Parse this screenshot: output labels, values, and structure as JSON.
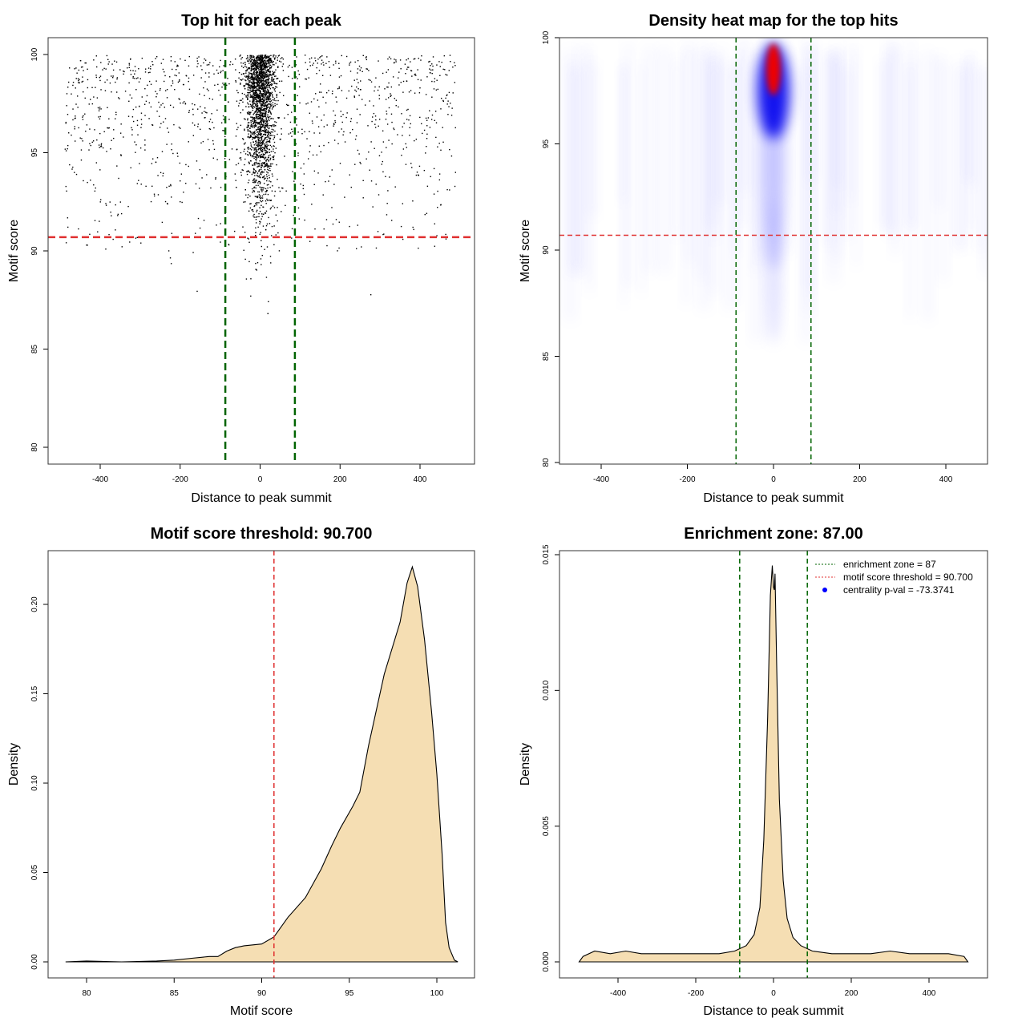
{
  "chart_data": [
    {
      "type": "scatter",
      "title": "Top hit for each peak",
      "xlabel": "Distance to peak summit",
      "ylabel": "Motif score",
      "xlim": [
        -500,
        500
      ],
      "ylim": [
        80,
        100
      ],
      "xticks": [
        -400,
        -200,
        0,
        200,
        400
      ],
      "yticks": [
        80,
        85,
        90,
        95,
        100
      ],
      "xtick_labels": [
        "-400",
        "-200",
        "0",
        "200",
        "400"
      ],
      "ytick_labels": [
        "80",
        "85",
        "90",
        "95",
        "100"
      ],
      "vlines": [
        -87,
        87
      ],
      "hline": 90.7,
      "points_summary": {
        "n_background": 1200,
        "n_central": 2200,
        "central_sd": 18,
        "score_range": [
          80,
          100
        ]
      }
    },
    {
      "type": "heatmap",
      "title": "Density heat map for the top hits",
      "xlabel": "Distance to peak summit",
      "ylabel": "Motif score",
      "xlim": [
        -500,
        500
      ],
      "ylim": [
        80,
        100
      ],
      "xticks": [
        -400,
        -200,
        0,
        200,
        400
      ],
      "yticks": [
        80,
        85,
        90,
        95,
        100
      ],
      "xtick_labels": [
        "-400",
        "-200",
        "0",
        "200",
        "400"
      ],
      "ytick_labels": [
        "80",
        "85",
        "90",
        "95",
        "100"
      ],
      "vlines": [
        -87,
        87
      ],
      "hline": 90.7,
      "peak": {
        "x": 0,
        "y": 98.5
      }
    },
    {
      "type": "area",
      "title": "Motif score threshold: 90.700",
      "xlabel": "Motif score",
      "ylabel": "Density",
      "xlim": [
        78,
        101.5
      ],
      "ylim": [
        0,
        0.225
      ],
      "xticks": [
        80,
        85,
        90,
        95,
        100
      ],
      "yticks": [
        0,
        0.05,
        0.1,
        0.15,
        0.2
      ],
      "xtick_labels": [
        "80",
        "85",
        "90",
        "95",
        "100"
      ],
      "ytick_labels": [
        "0.00",
        "0.05",
        "0.10",
        "0.15",
        "0.20"
      ],
      "vline": 90.7,
      "x": [
        78.8,
        80,
        82,
        84,
        85,
        86,
        87,
        87.5,
        88,
        88.5,
        89,
        90,
        90.7,
        91.5,
        92.5,
        93.4,
        94,
        94.5,
        95.2,
        95.6,
        96.1,
        97,
        97.9,
        98.3,
        98.6,
        98.9,
        99.3,
        99.7,
        100,
        100.3,
        100.5,
        100.7,
        101,
        101.2
      ],
      "y": [
        0,
        0.0005,
        0,
        0.0005,
        0.001,
        0.002,
        0.003,
        0.003,
        0.006,
        0.008,
        0.009,
        0.01,
        0.014,
        0.025,
        0.036,
        0.052,
        0.065,
        0.075,
        0.087,
        0.095,
        0.121,
        0.161,
        0.19,
        0.212,
        0.221,
        0.21,
        0.18,
        0.14,
        0.105,
        0.06,
        0.022,
        0.008,
        0.001,
        0
      ]
    },
    {
      "type": "area",
      "title": "Enrichment zone: 87.00",
      "xlabel": "Distance to peak summit",
      "ylabel": "Density",
      "xlim": [
        -510,
        550
      ],
      "ylim": [
        0,
        0.0152
      ],
      "xticks": [
        -400,
        -200,
        0,
        200,
        400
      ],
      "yticks": [
        0,
        0.005,
        0.01,
        0.015
      ],
      "xtick_labels": [
        "-400",
        "-200",
        "0",
        "200",
        "400"
      ],
      "ytick_labels": [
        "0.000",
        "0.005",
        "0.010",
        "0.015"
      ],
      "vlines": [
        -87,
        87
      ],
      "x": [
        -500,
        -490,
        -460,
        -420,
        -380,
        -340,
        -300,
        -260,
        -220,
        -180,
        -140,
        -100,
        -70,
        -50,
        -35,
        -25,
        -15,
        -8,
        -3,
        0,
        2,
        4,
        8,
        15,
        25,
        35,
        50,
        70,
        100,
        150,
        200,
        250,
        300,
        350,
        400,
        450,
        490,
        500
      ],
      "y": [
        0,
        0.0002,
        0.0004,
        0.0003,
        0.0004,
        0.0003,
        0.0003,
        0.0003,
        0.0003,
        0.0003,
        0.0003,
        0.0004,
        0.0006,
        0.001,
        0.002,
        0.0045,
        0.009,
        0.0135,
        0.0146,
        0.0138,
        0.0137,
        0.0143,
        0.011,
        0.006,
        0.003,
        0.0016,
        0.0009,
        0.0006,
        0.0004,
        0.0003,
        0.0003,
        0.0003,
        0.0004,
        0.0003,
        0.0003,
        0.0003,
        0.0002,
        0
      ],
      "legend": {
        "position": "top-right",
        "entries": [
          {
            "label": "enrichment zone = 87",
            "color": "#006400",
            "style": "dotted-line"
          },
          {
            "label": "motif score threshold = 90.700",
            "color": "#e03030",
            "style": "dotted-line"
          },
          {
            "label": "centrality p-val = -73.3741",
            "color": "#0000ff",
            "style": "point"
          }
        ]
      }
    }
  ],
  "colors": {
    "fill": "#f5deb3",
    "green": "#006400",
    "red": "#e03030",
    "blue": "#0000ff"
  }
}
